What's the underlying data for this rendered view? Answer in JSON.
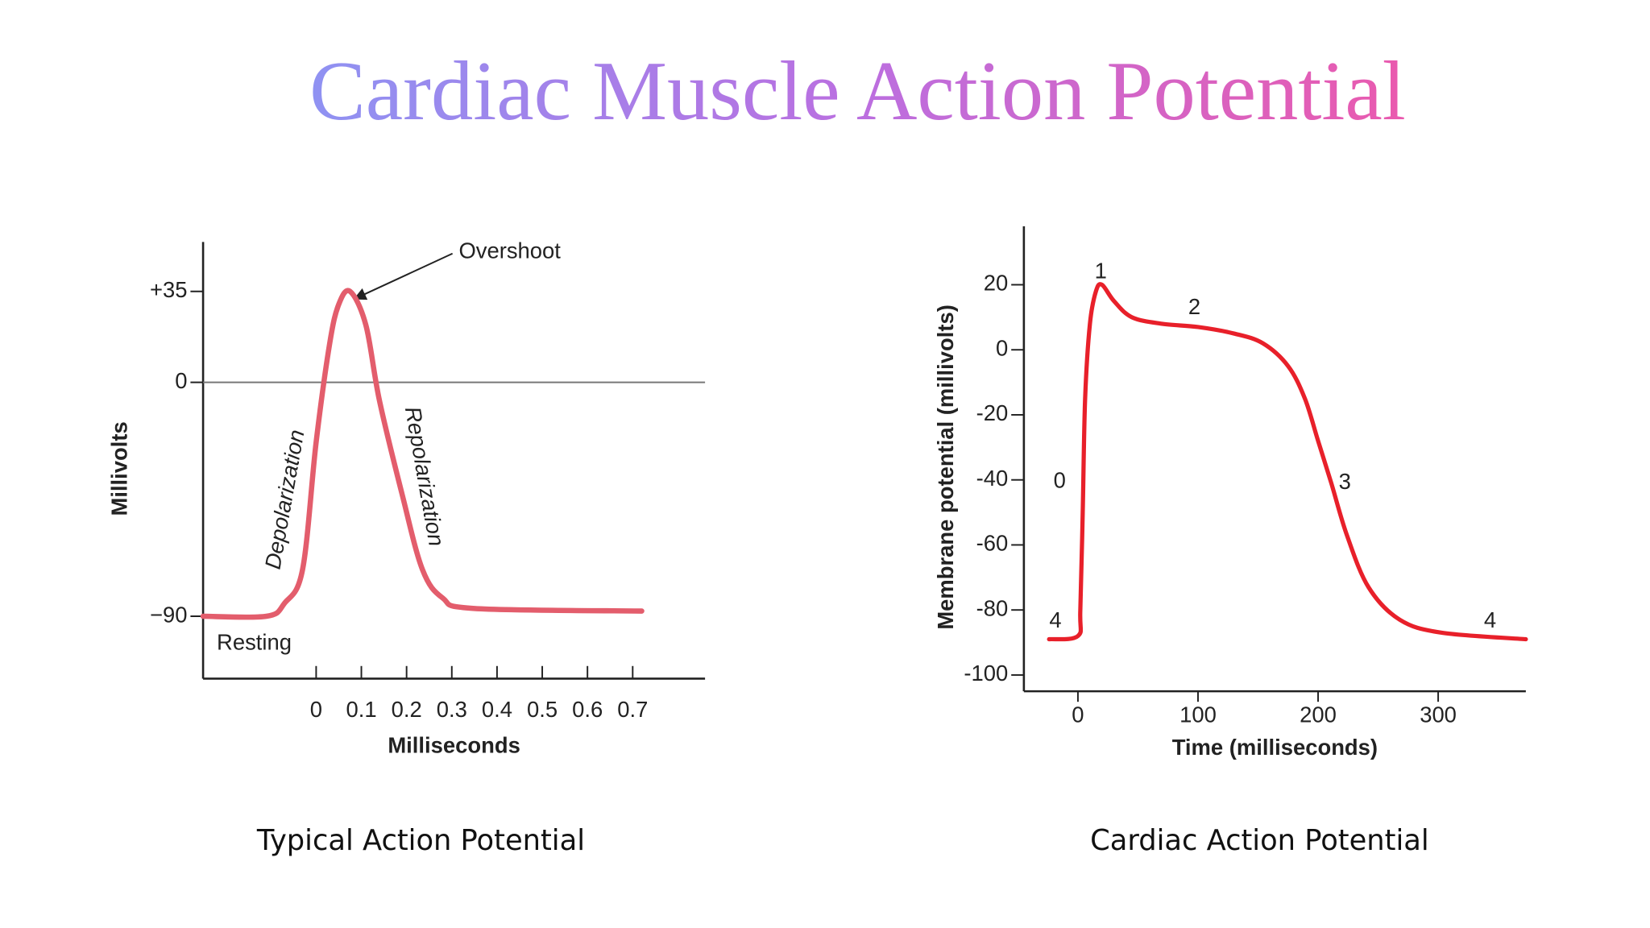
{
  "title": "Cardiac Muscle Action Potential",
  "chart_data": [
    {
      "type": "line",
      "caption": "Typical Action Potential",
      "x_label": "Milliseconds",
      "y_label": "Millivolts",
      "annotations": [
        "Overshoot",
        "Depolarization",
        "Repolarization",
        "Resting"
      ],
      "x": [
        -0.25,
        -0.11,
        -0.07,
        -0.03,
        0,
        0.03,
        0.05,
        0.075,
        0.11,
        0.14,
        0.19,
        0.235,
        0.28,
        0.35,
        0.72
      ],
      "values": [
        -90,
        -90,
        -85,
        -72,
        -23,
        15,
        30,
        35,
        22,
        -7,
        -43,
        -72,
        -83,
        -87,
        -88
      ],
      "color": "#e35d6c",
      "xlim": [
        -0.25,
        0.86
      ],
      "xticks": [
        0,
        0.1,
        0.2,
        0.3,
        0.4,
        0.5,
        0.6,
        0.7
      ],
      "ylim": [
        -114,
        54
      ],
      "yticks": [
        {
          "value": 35,
          "label": "+35"
        },
        0,
        {
          "value": -90,
          "label": "−90"
        }
      ],
      "zero_line": true
    },
    {
      "type": "line",
      "caption": "Cardiac Action Potential",
      "x_label": "Time (milliseconds)",
      "y_label": "Membrane potential (millivolts)",
      "annotations": [
        "1",
        "2",
        "0",
        "3",
        "4",
        "4"
      ],
      "x": [
        -24,
        0,
        2,
        4,
        6,
        10,
        15,
        20,
        30,
        45,
        70,
        100,
        130,
        154,
        175,
        189,
        200,
        211,
        224,
        242,
        268,
        303,
        373
      ],
      "values": [
        -89,
        -88,
        -80,
        -50,
        -15,
        8,
        18,
        20,
        15,
        10,
        8,
        7,
        5,
        2,
        -5,
        -15,
        -28,
        -41,
        -57,
        -73,
        -83,
        -87,
        -89
      ],
      "color": "#e8202a",
      "xlim": [
        -45,
        373
      ],
      "xticks": [
        0,
        100,
        200,
        300
      ],
      "ylim": [
        -105,
        38
      ],
      "yticks": [
        20,
        0,
        -20,
        -40,
        -60,
        -80,
        -100
      ],
      "zero_line": false
    }
  ]
}
